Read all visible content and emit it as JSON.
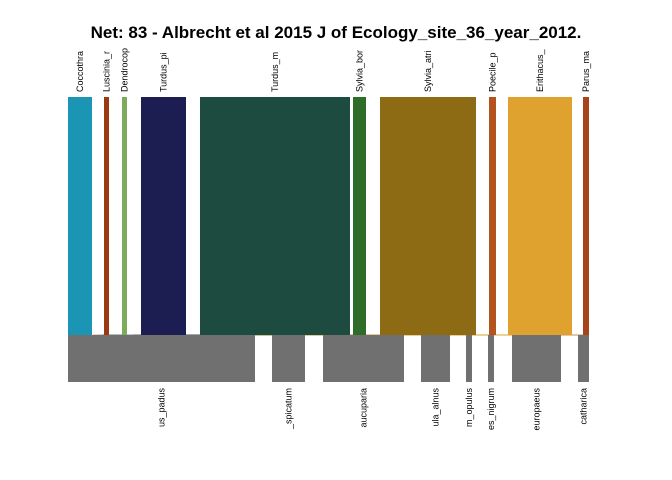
{
  "title": "Net: 83 - Albrecht et al 2015 J of Ecology_site_36_year_2012.",
  "higher_level": [
    {
      "label": "Coccothra",
      "color": "#1a96b4"
    },
    {
      "label": "Luscinia_r",
      "color": "#9b3a12"
    },
    {
      "label": "Dendrocop",
      "color": "#7eaa5c"
    },
    {
      "label": "Turdus_pi",
      "color": "#1c1d50"
    },
    {
      "label": "Turdus_m",
      "color": "#1e4b40"
    },
    {
      "label": "Sylvia_bor",
      "color": "#2e6d28"
    },
    {
      "label": "Sylvia_atri",
      "color": "#8d6a14"
    },
    {
      "label": "Poecile_p",
      "color": "#b5531f"
    },
    {
      "label": "Erithacus_",
      "color": "#e0a22e"
    },
    {
      "label": "Parus_ma",
      "color": "#a5431a"
    }
  ],
  "lower_level": [
    {
      "label": "us_padus"
    },
    {
      "label": "_spicatum"
    },
    {
      "label": "aucuparia"
    },
    {
      "label": "ula_alnus"
    },
    {
      "label": "m_opulus"
    },
    {
      "label": "es_nigrum"
    },
    {
      "label": "europaeus"
    },
    {
      "label": "catharica"
    }
  ],
  "lower_color": "#707070"
}
